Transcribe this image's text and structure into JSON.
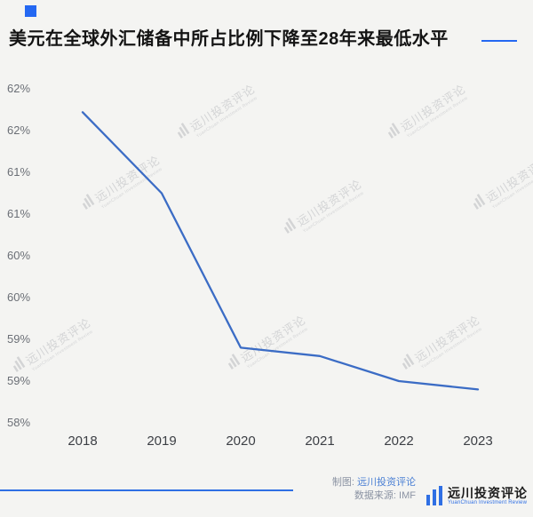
{
  "header": {
    "title": "美元在全球外汇储备中所占比例下降至28年来最低水平"
  },
  "chart_data": {
    "type": "line",
    "title": "美元在全球外汇储备中所占比例下降至28年来最低水平",
    "x": [
      "2018",
      "2019",
      "2020",
      "2021",
      "2022",
      "2023"
    ],
    "values": [
      61.72,
      60.75,
      58.9,
      58.8,
      58.5,
      58.4
    ],
    "xlabel": "",
    "ylabel": "",
    "ylim": [
      58,
      62
    ],
    "yticks": {
      "values": [
        62,
        61.5,
        61,
        60.5,
        60,
        59.5,
        59,
        58.5,
        58
      ],
      "labels": [
        "62%",
        "62%",
        "61%",
        "61%",
        "60%",
        "60%",
        "59%",
        "59%",
        "58%"
      ]
    },
    "grid": false,
    "legend": "none",
    "line_color": "#3b6cc5"
  },
  "watermark": {
    "text": "远川投资评论",
    "subtext": "YuanChuan Investment Review"
  },
  "footer": {
    "credit_label": "制图:",
    "credit_value": "远川投资评论",
    "source_label": "数据来源:",
    "source_value": "IMF",
    "brand_name": "远川投资评论",
    "brand_subtitle": "YuanChuan Investment Review"
  },
  "colors": {
    "accent": "#2468f2",
    "line": "#3b6cc5"
  }
}
